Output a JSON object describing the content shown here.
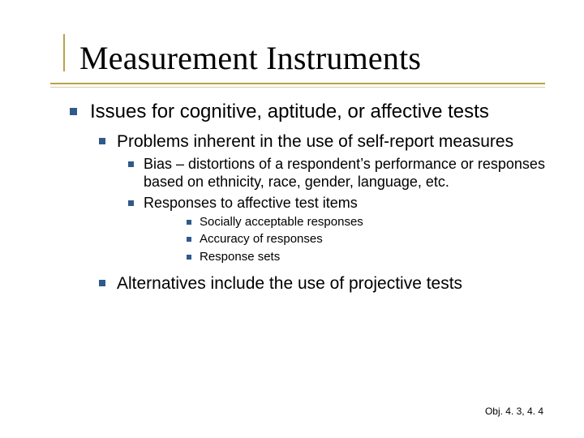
{
  "colors": {
    "bullet": "#2f5a8a",
    "accent_rule": "#b9a24a",
    "accent_rule_light": "#d8cfa2",
    "background": "#ffffff",
    "text": "#000000"
  },
  "fonts": {
    "title_family": "Times New Roman",
    "body_family": "Verdana",
    "title_size_pt": 40,
    "lvl1_size_pt": 24,
    "lvl2_size_pt": 21,
    "lvl3_size_pt": 18,
    "lvl4_size_pt": 15,
    "footer_size_pt": 12
  },
  "title": "Measurement Instruments",
  "content": {
    "lvl1": "Issues for cognitive, aptitude, or affective tests",
    "lvl2_a": "Problems inherent in the use of self-report measures",
    "lvl3_a": "Bias – distortions of a respondent’s performance or responses based on ethnicity, race, gender, language, etc.",
    "lvl3_b": "Responses to affective test items",
    "lvl4_a": "Socially acceptable responses",
    "lvl4_b": "Accuracy of responses",
    "lvl4_c": "Response sets",
    "lvl2_b": "Alternatives include the use of projective tests"
  },
  "footer": "Obj. 4. 3, 4. 4"
}
